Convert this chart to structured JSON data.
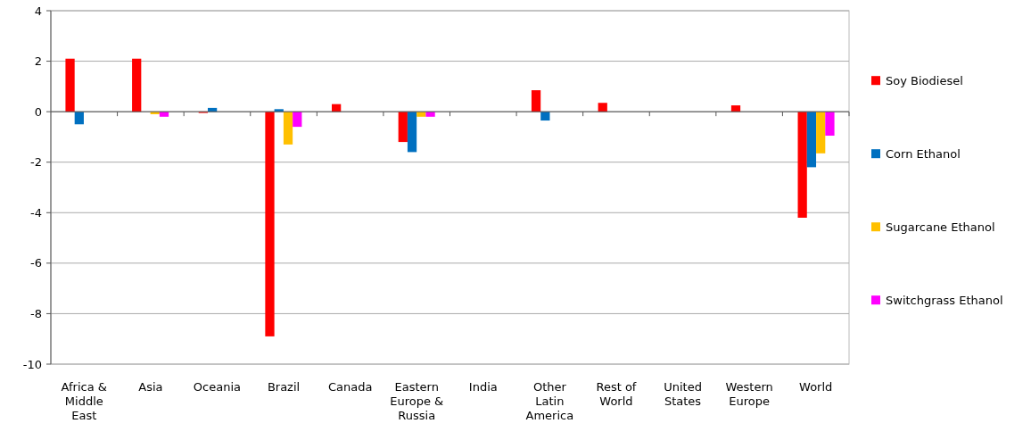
{
  "chart_data": {
    "type": "bar",
    "categories": [
      "Africa & Middle East",
      "Asia",
      "Oceania",
      "Brazil",
      "Canada",
      "Eastern Europe & Russia",
      "India",
      "Other Latin America",
      "Rest of World",
      "United States",
      "Western Europe",
      "World"
    ],
    "series": [
      {
        "name": "Soy Biodiesel",
        "color": "#ff0000",
        "values": [
          2.1,
          2.1,
          -0.05,
          -8.9,
          0.3,
          -1.2,
          0,
          0.85,
          0.35,
          0,
          0.25,
          -4.2
        ]
      },
      {
        "name": "Corn Ethanol",
        "color": "#0070c0",
        "values": [
          -0.5,
          0,
          0.15,
          0.1,
          0,
          -1.6,
          0,
          -0.35,
          0,
          0,
          0,
          -2.2
        ]
      },
      {
        "name": "Sugarcane Ethanol",
        "color": "#ffc000",
        "values": [
          0,
          -0.1,
          0,
          -1.3,
          0,
          -0.2,
          0,
          0,
          0,
          0,
          0,
          -1.65
        ]
      },
      {
        "name": "Switchgrass Ethanol",
        "color": "#ff00ff",
        "values": [
          0,
          -0.2,
          0,
          -0.6,
          0,
          -0.2,
          0,
          0,
          0,
          0,
          0,
          -0.95
        ]
      }
    ],
    "ylim": [
      -10,
      4
    ],
    "yticks": [
      -10,
      -8,
      -6,
      -4,
      -2,
      0,
      2,
      4
    ],
    "grid": "y",
    "legend": "right"
  }
}
